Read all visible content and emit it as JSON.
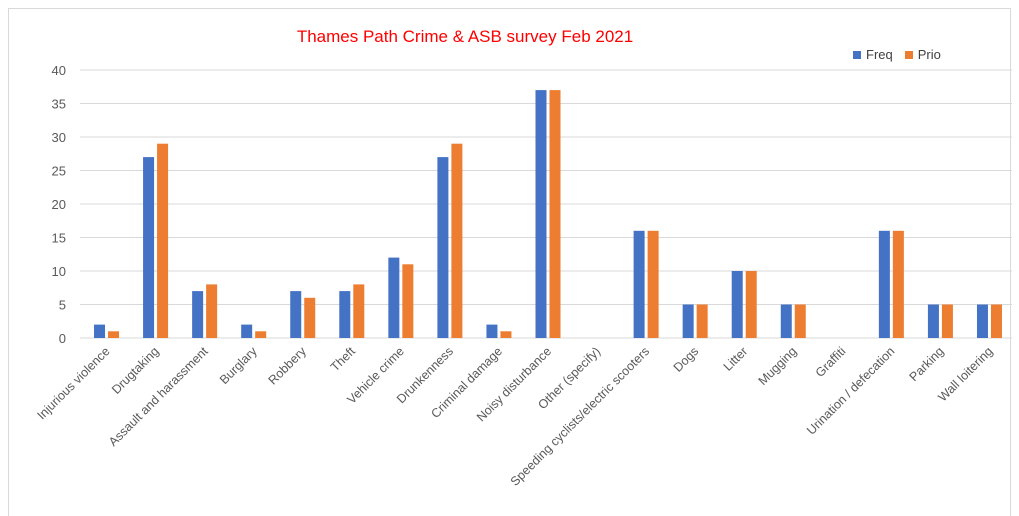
{
  "chart_data": {
    "type": "bar",
    "title": "Thames Path Crime & ASB survey Feb 2021",
    "categories": [
      "Injurious violence",
      "Drugtaking",
      "Assault and harassment",
      "Burglary",
      "Robbery",
      "Theft",
      "Vehicle crime",
      "Drunkenness",
      "Criminal damage",
      "Noisy disturbance",
      "Other (specify)",
      "Speeding cyclists/electric scooters",
      "Dogs",
      "Litter",
      "Mugging",
      "Graffiti",
      "Urination / defecation",
      "Parking",
      "Wall loitering"
    ],
    "series": [
      {
        "name": "Freq",
        "color": "#4472c4",
        "values": [
          2,
          27,
          7,
          2,
          7,
          7,
          12,
          27,
          2,
          37,
          0,
          16,
          5,
          10,
          5,
          0,
          16,
          5,
          5
        ]
      },
      {
        "name": "Prio",
        "color": "#ed7d31",
        "values": [
          1,
          29,
          8,
          1,
          6,
          8,
          11,
          29,
          1,
          37,
          0,
          16,
          5,
          10,
          5,
          0,
          16,
          5,
          5
        ]
      }
    ],
    "ylim": [
      0,
      40
    ],
    "yticks": [
      0,
      5,
      10,
      15,
      20,
      25,
      30,
      35,
      40
    ],
    "grid": true,
    "legend": "top-right"
  }
}
